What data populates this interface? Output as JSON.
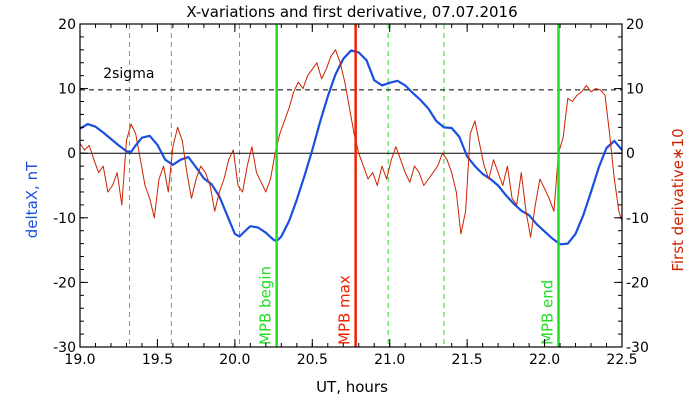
{
  "chart_data": {
    "type": "line",
    "title": "X-variations and first derivative, 07.07.2016",
    "xlabel": "UT, hours",
    "ylabel_left": "deltaX, nT",
    "ylabel_right": "First derivative∗10",
    "xlim": [
      19.0,
      22.5
    ],
    "ylim": [
      -30,
      20
    ],
    "x_ticks": [
      {
        "value": 19.0,
        "label": "19.0"
      },
      {
        "value": 19.5,
        "label": "19.5"
      },
      {
        "value": 20.0,
        "label": "20.0"
      },
      {
        "value": 20.5,
        "label": "20.5"
      },
      {
        "value": 21.0,
        "label": "21.0"
      },
      {
        "value": 21.5,
        "label": "21.5"
      },
      {
        "value": 22.0,
        "label": "22.0"
      },
      {
        "value": 22.5,
        "label": "22.5"
      }
    ],
    "y_ticks": [
      {
        "value": 20,
        "label": "20"
      },
      {
        "value": 10,
        "label": "10"
      },
      {
        "value": 0,
        "label": "0"
      },
      {
        "value": -10,
        "label": "-10"
      },
      {
        "value": -20,
        "label": "-20"
      },
      {
        "value": -30,
        "label": "-30"
      }
    ],
    "sigma_line": {
      "value": 9.8,
      "label": "2sigma"
    },
    "zero_line": 0,
    "dashed_vlines": [
      19.32,
      19.59,
      20.03,
      20.99,
      21.35
    ],
    "markers": [
      {
        "x": 20.27,
        "label": "MPB begin",
        "color": "#22dd22"
      },
      {
        "x": 20.78,
        "label": "MPB max",
        "color": "#ee2200"
      },
      {
        "x": 22.09,
        "label": "MPB end",
        "color": "#22dd22"
      }
    ],
    "colors": {
      "deltaX": "#1a4fe0",
      "derivative": "#cc2200",
      "axis": "#000000"
    },
    "series": [
      {
        "key": "deltaX",
        "x": [
          19.0,
          19.05,
          19.1,
          19.15,
          19.2,
          19.25,
          19.3,
          19.33,
          19.36,
          19.4,
          19.45,
          19.5,
          19.55,
          19.6,
          19.65,
          19.7,
          19.75,
          19.8,
          19.85,
          19.9,
          19.95,
          20.0,
          20.03,
          20.06,
          20.1,
          20.15,
          20.2,
          20.25,
          20.27,
          20.3,
          20.35,
          20.4,
          20.45,
          20.5,
          20.55,
          20.6,
          20.65,
          20.7,
          20.75,
          20.8,
          20.85,
          20.9,
          20.95,
          21.0,
          21.05,
          21.1,
          21.15,
          21.2,
          21.25,
          21.3,
          21.35,
          21.4,
          21.45,
          21.5,
          21.55,
          21.6,
          21.65,
          21.7,
          21.75,
          21.8,
          21.85,
          21.9,
          21.95,
          22.0,
          22.05,
          22.1,
          22.15,
          22.2,
          22.25,
          22.3,
          22.35,
          22.4,
          22.45,
          22.5
        ],
        "y": [
          3.8,
          4.5,
          4.1,
          3.2,
          2.2,
          1.2,
          0.3,
          0.2,
          1.2,
          2.4,
          2.7,
          1.3,
          -1.0,
          -1.8,
          -1.0,
          -0.6,
          -2.2,
          -3.9,
          -4.8,
          -6.7,
          -9.6,
          -12.5,
          -12.9,
          -12.2,
          -11.3,
          -11.5,
          -12.3,
          -13.4,
          -13.6,
          -12.9,
          -10.5,
          -7.2,
          -3.5,
          0.5,
          4.8,
          8.8,
          12.2,
          14.6,
          15.9,
          15.6,
          14.4,
          11.3,
          10.5,
          10.9,
          11.2,
          10.5,
          9.3,
          8.2,
          6.9,
          5.0,
          4.0,
          3.9,
          2.5,
          -0.5,
          -2.0,
          -3.2,
          -4.0,
          -5.0,
          -6.5,
          -7.8,
          -8.9,
          -9.6,
          -11.0,
          -12.1,
          -13.2,
          -14.1,
          -14.0,
          -12.5,
          -9.6,
          -6.0,
          -2.2,
          0.8,
          1.9,
          0.5
        ]
      },
      {
        "key": "derivative",
        "x": [
          19.0,
          19.03,
          19.06,
          19.09,
          19.12,
          19.15,
          19.18,
          19.21,
          19.24,
          19.27,
          19.3,
          19.33,
          19.36,
          19.39,
          19.42,
          19.45,
          19.48,
          19.51,
          19.54,
          19.57,
          19.6,
          19.63,
          19.66,
          19.69,
          19.72,
          19.75,
          19.78,
          19.81,
          19.84,
          19.87,
          19.9,
          19.93,
          19.96,
          19.99,
          20.02,
          20.05,
          20.08,
          20.11,
          20.14,
          20.17,
          20.2,
          20.23,
          20.26,
          20.29,
          20.32,
          20.35,
          20.38,
          20.41,
          20.44,
          20.47,
          20.5,
          20.53,
          20.56,
          20.59,
          20.62,
          20.65,
          20.68,
          20.71,
          20.74,
          20.77,
          20.8,
          20.83,
          20.86,
          20.89,
          20.92,
          20.95,
          20.98,
          21.01,
          21.04,
          21.07,
          21.1,
          21.13,
          21.16,
          21.19,
          21.22,
          21.25,
          21.28,
          21.31,
          21.34,
          21.37,
          21.4,
          21.43,
          21.46,
          21.49,
          21.52,
          21.55,
          21.58,
          21.61,
          21.64,
          21.67,
          21.7,
          21.73,
          21.76,
          21.79,
          21.82,
          21.85,
          21.88,
          21.91,
          21.94,
          21.97,
          22.0,
          22.03,
          22.06,
          22.09,
          22.12,
          22.15,
          22.18,
          22.21,
          22.24,
          22.27,
          22.3,
          22.33,
          22.36,
          22.39,
          22.42,
          22.45,
          22.48,
          22.5
        ],
        "y": [
          1.5,
          0.5,
          1.2,
          -1.0,
          -3.0,
          -2.0,
          -6.0,
          -5.0,
          -3.0,
          -8.0,
          2.0,
          4.5,
          3.0,
          -1.0,
          -5.0,
          -7.0,
          -10.0,
          -4.0,
          -2.0,
          -6.0,
          1.0,
          4.0,
          2.0,
          -3.0,
          -7.0,
          -4.0,
          -2.0,
          -3.0,
          -5.0,
          -9.0,
          -6.0,
          -4.0,
          -1.0,
          0.5,
          -5.0,
          -6.0,
          -2.0,
          1.0,
          -3.0,
          -4.5,
          -6.0,
          -4.0,
          0.0,
          3.0,
          5.0,
          7.0,
          9.5,
          11.0,
          10.0,
          12.0,
          13.0,
          14.0,
          11.5,
          13.0,
          15.0,
          16.0,
          14.0,
          11.0,
          7.0,
          3.0,
          0.0,
          -2.0,
          -4.0,
          -3.0,
          -5.0,
          -2.0,
          -4.0,
          -1.0,
          1.0,
          -1.0,
          -3.0,
          -4.5,
          -2.0,
          -3.0,
          -5.0,
          -4.0,
          -3.0,
          -2.0,
          0.0,
          -1.0,
          -3.0,
          -6.0,
          -12.5,
          -9.0,
          3.0,
          5.0,
          1.5,
          -2.0,
          -4.0,
          -1.0,
          -3.0,
          -5.0,
          -2.0,
          -7.0,
          -8.0,
          -3.0,
          -9.0,
          -13.0,
          -8.0,
          -4.0,
          -5.5,
          -7.0,
          -9.0,
          0.0,
          2.5,
          8.5,
          8.0,
          9.0,
          9.5,
          10.5,
          9.5,
          10.0,
          9.8,
          9.0,
          3.0,
          -4.0,
          -9.0,
          -10.5
        ]
      }
    ]
  }
}
